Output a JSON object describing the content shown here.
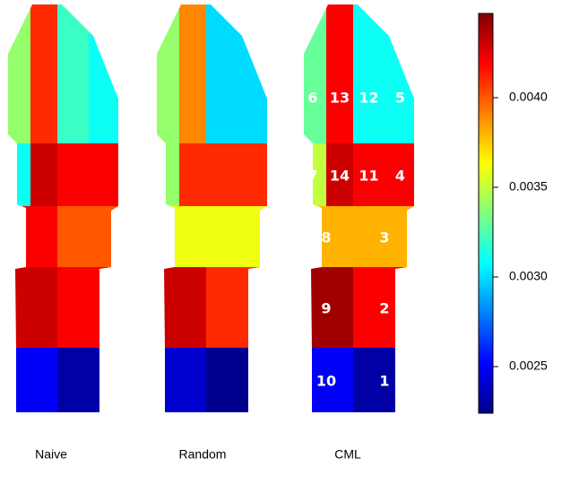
{
  "chart_data": {
    "type": "heatmap",
    "regions": [
      "1",
      "2",
      "3",
      "4",
      "5",
      "6",
      "7",
      "8",
      "9",
      "10",
      "11",
      "12",
      "13",
      "14"
    ],
    "series": [
      {
        "name": "Naive",
        "values": [
          0.0023,
          0.0042,
          0.004,
          0.0042,
          0.0031,
          0.0034,
          0.0031,
          0.0042,
          0.0043,
          0.0025,
          0.0042,
          0.0032,
          0.0041,
          0.0043
        ]
      },
      {
        "name": "Random",
        "values": [
          0.00225,
          0.0041,
          0.0036,
          0.0041,
          0.003,
          0.0034,
          0.0034,
          0.0036,
          0.0043,
          0.0024,
          0.0041,
          0.003,
          0.0039,
          0.0041
        ]
      },
      {
        "name": "CML",
        "values": [
          0.0023,
          0.0042,
          0.0038,
          0.0042,
          0.0031,
          0.0033,
          0.0035,
          0.0038,
          0.0044,
          0.0025,
          0.0042,
          0.0031,
          0.0042,
          0.0043
        ],
        "show_region_labels": true
      }
    ],
    "colors": [
      "#00008b",
      "#0000ff",
      "#0080ff",
      "#00ffff",
      "#80ff80",
      "#ffff00",
      "#ff8000",
      "#ff0000",
      "#800000"
    ],
    "ylim": [
      0.00224,
      0.00447
    ],
    "yticks": [
      0.0025,
      {
        "value": 0.003,
        "label": "0.0030"
      },
      0.0035,
      {
        "value": 0.004,
        "label": "0.0040"
      }
    ]
  }
}
